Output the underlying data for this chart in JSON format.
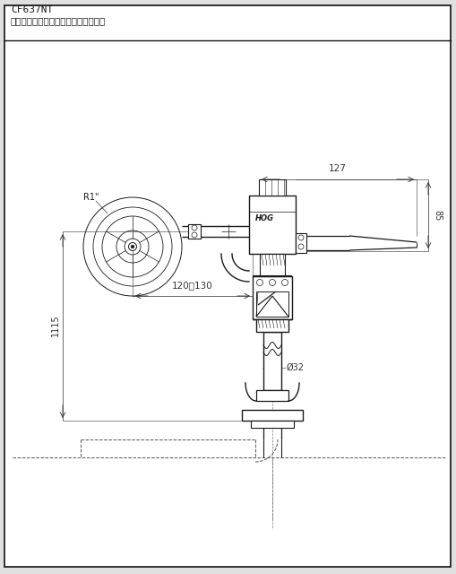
{
  "title_line1": "CF637NT",
  "title_line2": "手压式马桶冲水阀（加装防虹吸装置）",
  "bg_color": "#e0e0e0",
  "white": "#ffffff",
  "line_color": "#1a1a1a",
  "dim_color": "#333333",
  "dim_127": "127",
  "dim_85": "85",
  "dim_120_130": "120～130",
  "dim_1115": "1115",
  "dim_r1": "R1\"",
  "dim_phi32": "Ø32",
  "label_hog": "HOG"
}
